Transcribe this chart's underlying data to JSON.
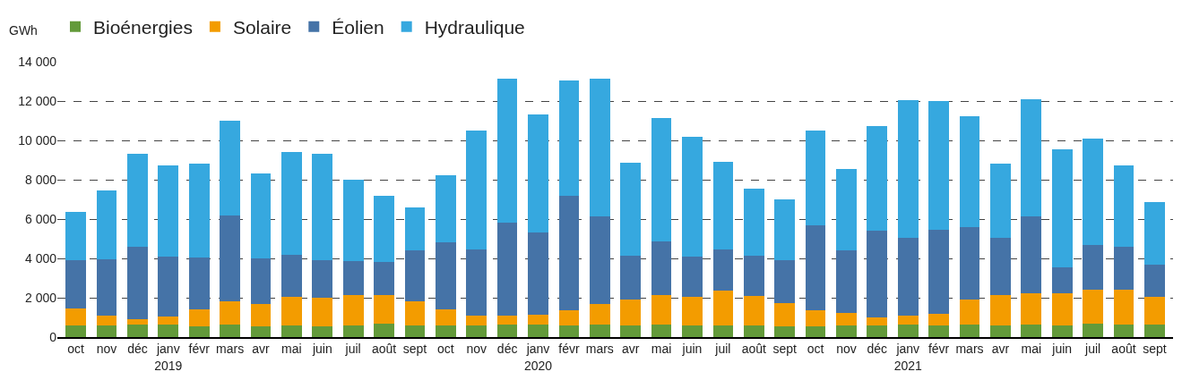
{
  "chart_data": {
    "type": "bar",
    "stacked": true,
    "ylabel": "GWh",
    "legend": "top left",
    "grid": "y",
    "categories": [
      "oct",
      "nov",
      "déc",
      "janv\n2019",
      "févr",
      "mars",
      "avr",
      "mai",
      "juin",
      "juil",
      "août",
      "sept",
      "oct",
      "nov",
      "déc",
      "janv\n2020",
      "févr",
      "mars",
      "avr",
      "mai",
      "juin",
      "juil",
      "août",
      "sept",
      "oct",
      "nov",
      "déc",
      "janv\n2021",
      "févr",
      "mars",
      "avr",
      "mai",
      "juin",
      "juil",
      "août",
      "sept"
    ],
    "ylim": [
      0,
      14000
    ],
    "yticks": [
      0,
      {
        "value": 2000,
        "label": "2 000"
      },
      {
        "value": 4000,
        "label": "4 000"
      },
      {
        "value": 6000,
        "label": "6 000"
      },
      {
        "value": 8000,
        "label": "8 000"
      },
      {
        "value": 10000,
        "label": "10 000"
      },
      {
        "value": 12000,
        "label": "12 000"
      },
      {
        "value": 14000,
        "label": "14 000"
      }
    ],
    "series": [
      {
        "name": "Bioénergies",
        "color": "#639a3a",
        "values": [
          600,
          600,
          650,
          650,
          550,
          650,
          550,
          600,
          550,
          600,
          700,
          600,
          600,
          600,
          650,
          650,
          600,
          650,
          600,
          650,
          600,
          600,
          600,
          550,
          550,
          600,
          600,
          650,
          600,
          650,
          600,
          650,
          600,
          700,
          650,
          650
        ]
      },
      {
        "name": "Solaire",
        "color": "#f39c00",
        "values": [
          850,
          500,
          250,
          400,
          850,
          1150,
          1150,
          1450,
          1450,
          1550,
          1450,
          1200,
          800,
          500,
          450,
          500,
          750,
          1050,
          1300,
          1500,
          1450,
          1750,
          1500,
          1200,
          800,
          650,
          400,
          450,
          600,
          1250,
          1550,
          1600,
          1650,
          1700,
          1750,
          1400
        ]
      },
      {
        "name": "Éolien",
        "color": "#4573a7",
        "values": [
          2450,
          2850,
          3700,
          3050,
          2650,
          4400,
          2300,
          2150,
          1900,
          1700,
          1650,
          2600,
          3400,
          3350,
          4700,
          4150,
          5850,
          4450,
          2250,
          2700,
          2050,
          2100,
          2050,
          2150,
          4350,
          3150,
          4400,
          3950,
          4250,
          3700,
          2900,
          3900,
          1300,
          2300,
          2200,
          1650
        ]
      },
      {
        "name": "Hydraulique",
        "color": "#36a8df",
        "values": [
          2450,
          3500,
          4700,
          4650,
          4750,
          4800,
          4300,
          5200,
          5400,
          4150,
          3400,
          2200,
          3450,
          6050,
          7350,
          6000,
          5850,
          7000,
          4700,
          6300,
          6100,
          4450,
          3400,
          3100,
          4800,
          4150,
          5350,
          7000,
          6550,
          5650,
          3750,
          5950,
          6000,
          5400,
          4150,
          3150
        ]
      }
    ]
  }
}
